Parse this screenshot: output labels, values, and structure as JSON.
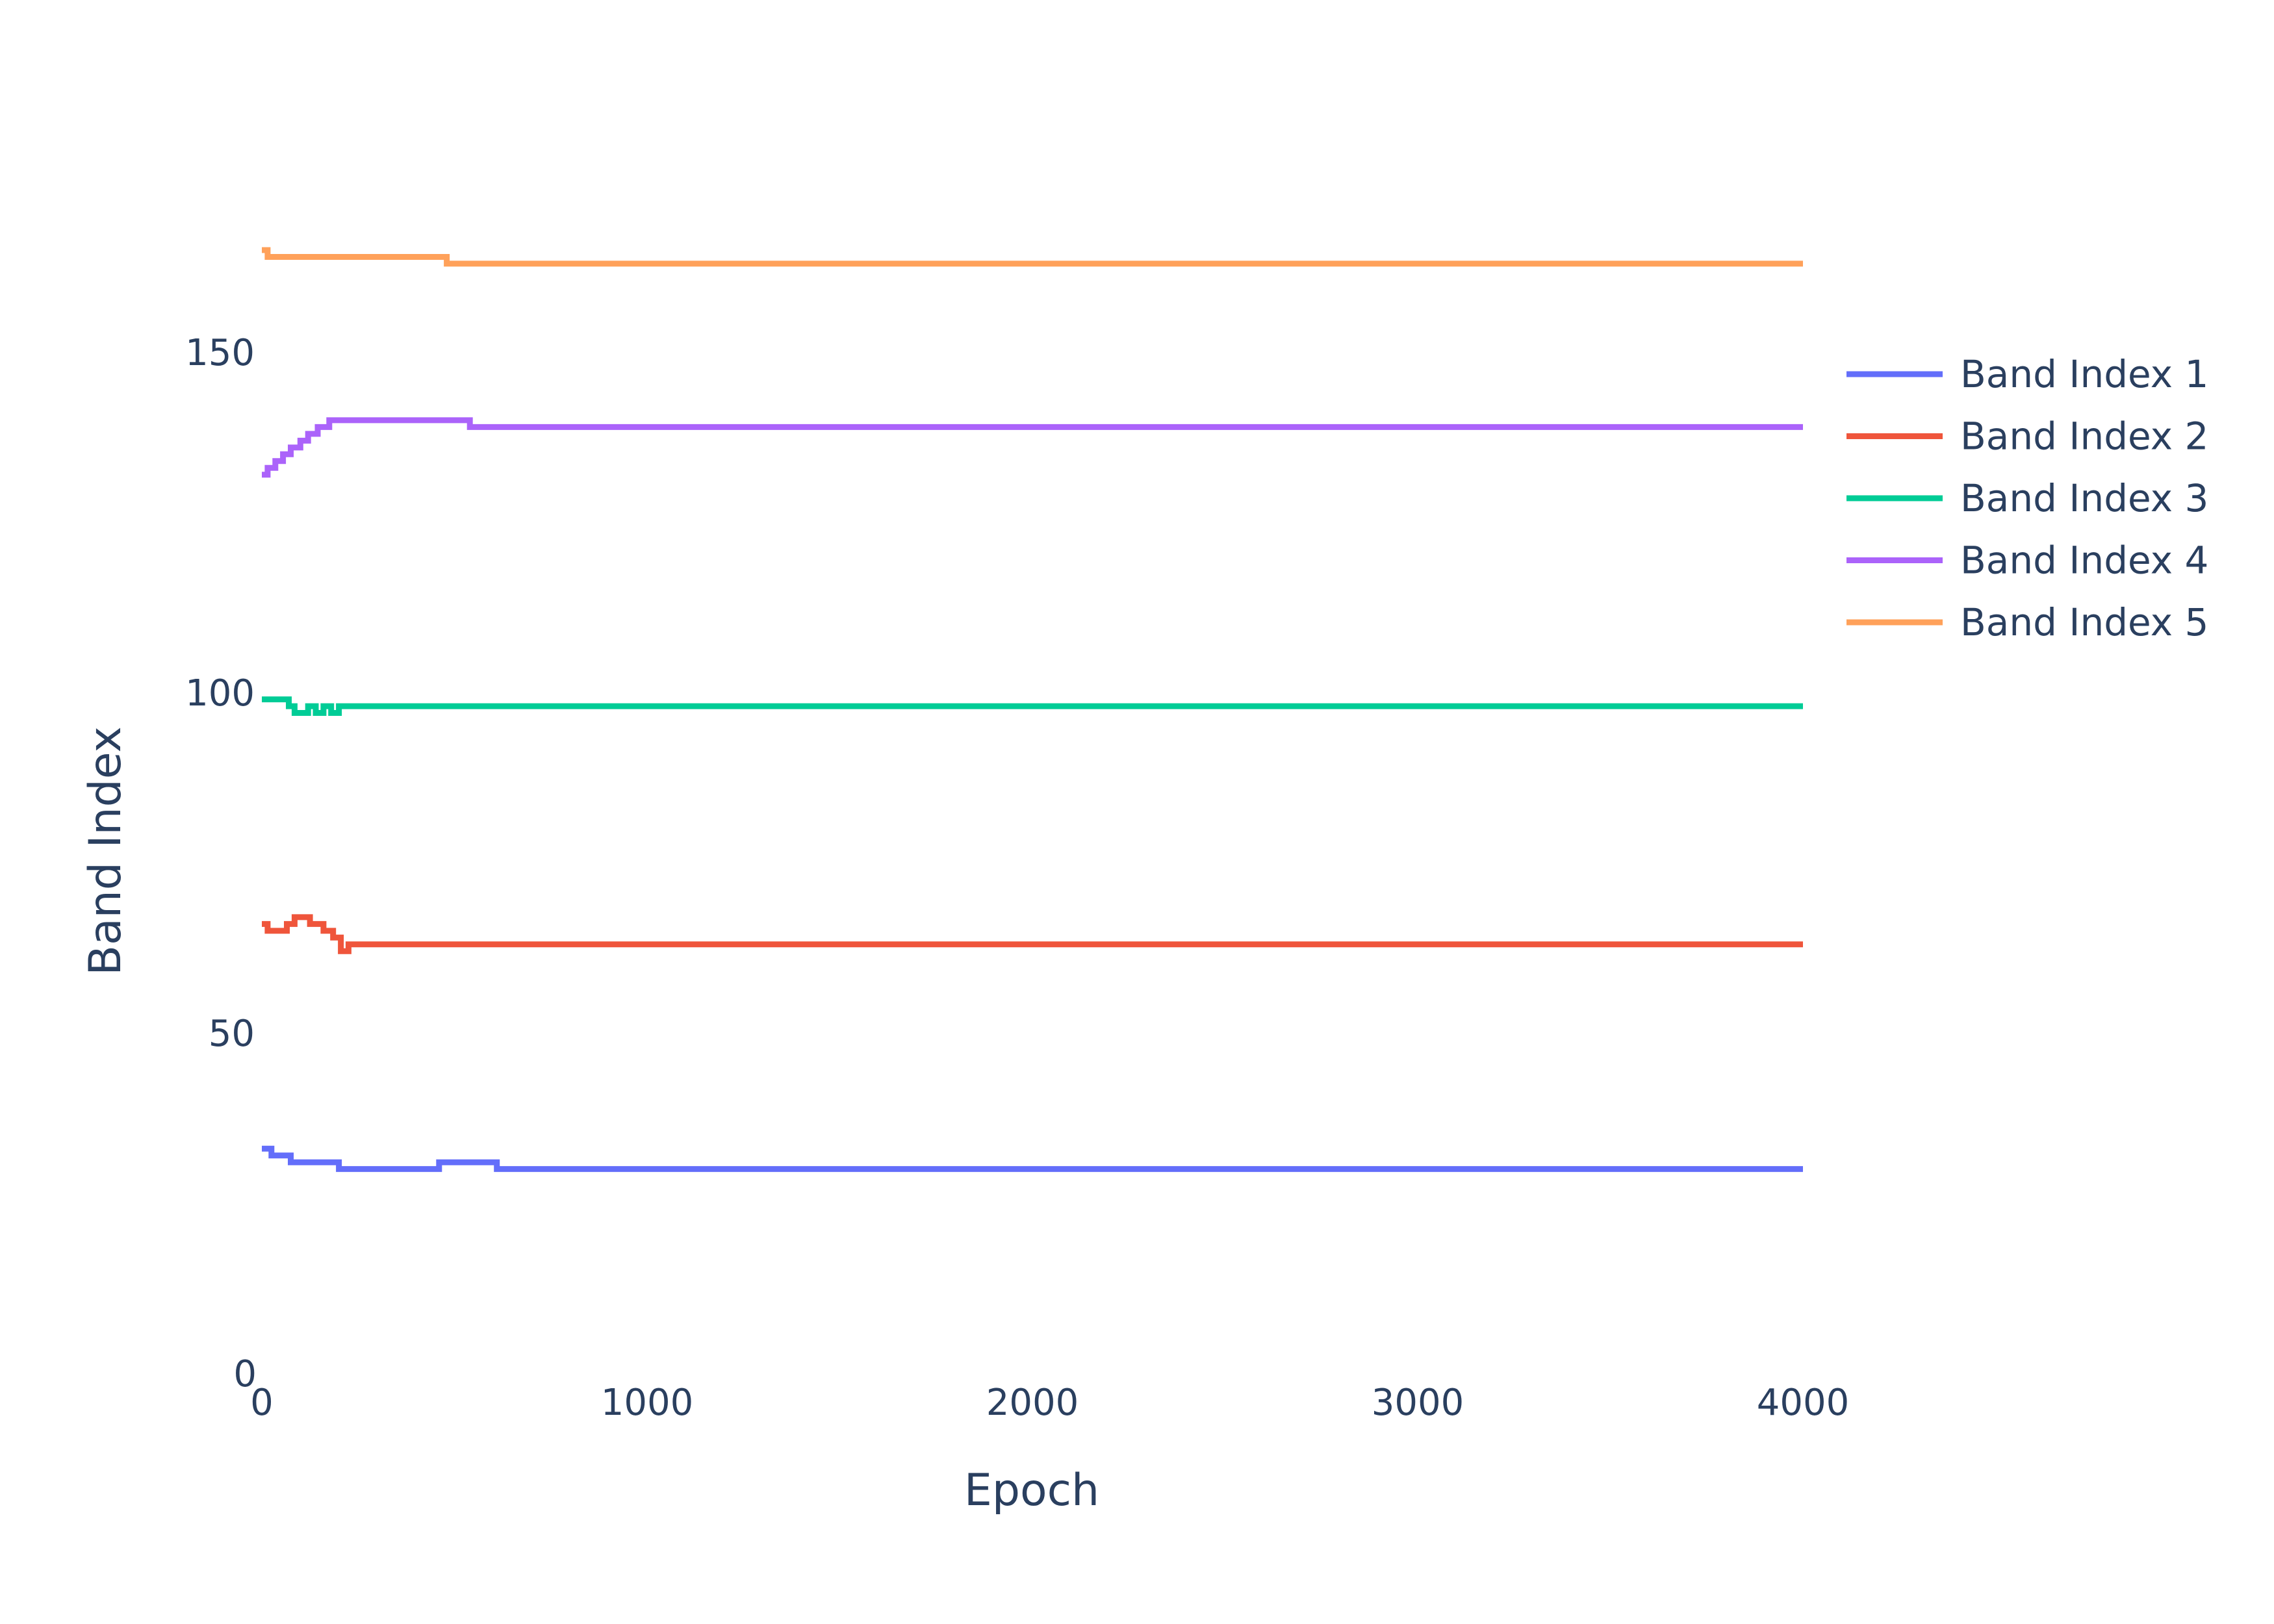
{
  "chart_data": {
    "type": "line",
    "title": "",
    "xlabel": "Epoch",
    "ylabel": "Band Index",
    "xlim": [
      0,
      4000
    ],
    "ylim": [
      0,
      190
    ],
    "x_ticks": [
      0,
      1000,
      2000,
      3000,
      4000
    ],
    "y_ticks": [
      0,
      50,
      100,
      150
    ],
    "grid": false,
    "legend_placement": "top-right",
    "series": [
      {
        "name": "Band Index 1",
        "color": "#636efa",
        "x": [
          0,
          25,
          50,
          75,
          200,
          460,
          610,
          4000
        ],
        "y": [
          33,
          32,
          32,
          31,
          30,
          31,
          30,
          30
        ]
      },
      {
        "name": "Band Index 2",
        "color": "#ef553b",
        "x": [
          0,
          15,
          65,
          85,
          125,
          160,
          185,
          205,
          225,
          4000
        ],
        "y": [
          66,
          65,
          66,
          67,
          66,
          65,
          64,
          62,
          63,
          63
        ]
      },
      {
        "name": "Band Index 3",
        "color": "#00cc96",
        "x": [
          0,
          70,
          85,
          120,
          140,
          160,
          180,
          200,
          215,
          4000
        ],
        "y": [
          99,
          98,
          97,
          98,
          97,
          98,
          97,
          98,
          98,
          98
        ]
      },
      {
        "name": "Band Index 4",
        "color": "#ab63fa",
        "x": [
          0,
          15,
          35,
          55,
          75,
          100,
          120,
          145,
          175,
          540,
          4000
        ],
        "y": [
          132,
          133,
          134,
          135,
          136,
          137,
          138,
          139,
          140,
          139,
          139
        ]
      },
      {
        "name": "Band Index 5",
        "color": "#ffa15a",
        "x": [
          0,
          15,
          480,
          4000
        ],
        "y": [
          165,
          164,
          163,
          163
        ]
      }
    ]
  }
}
